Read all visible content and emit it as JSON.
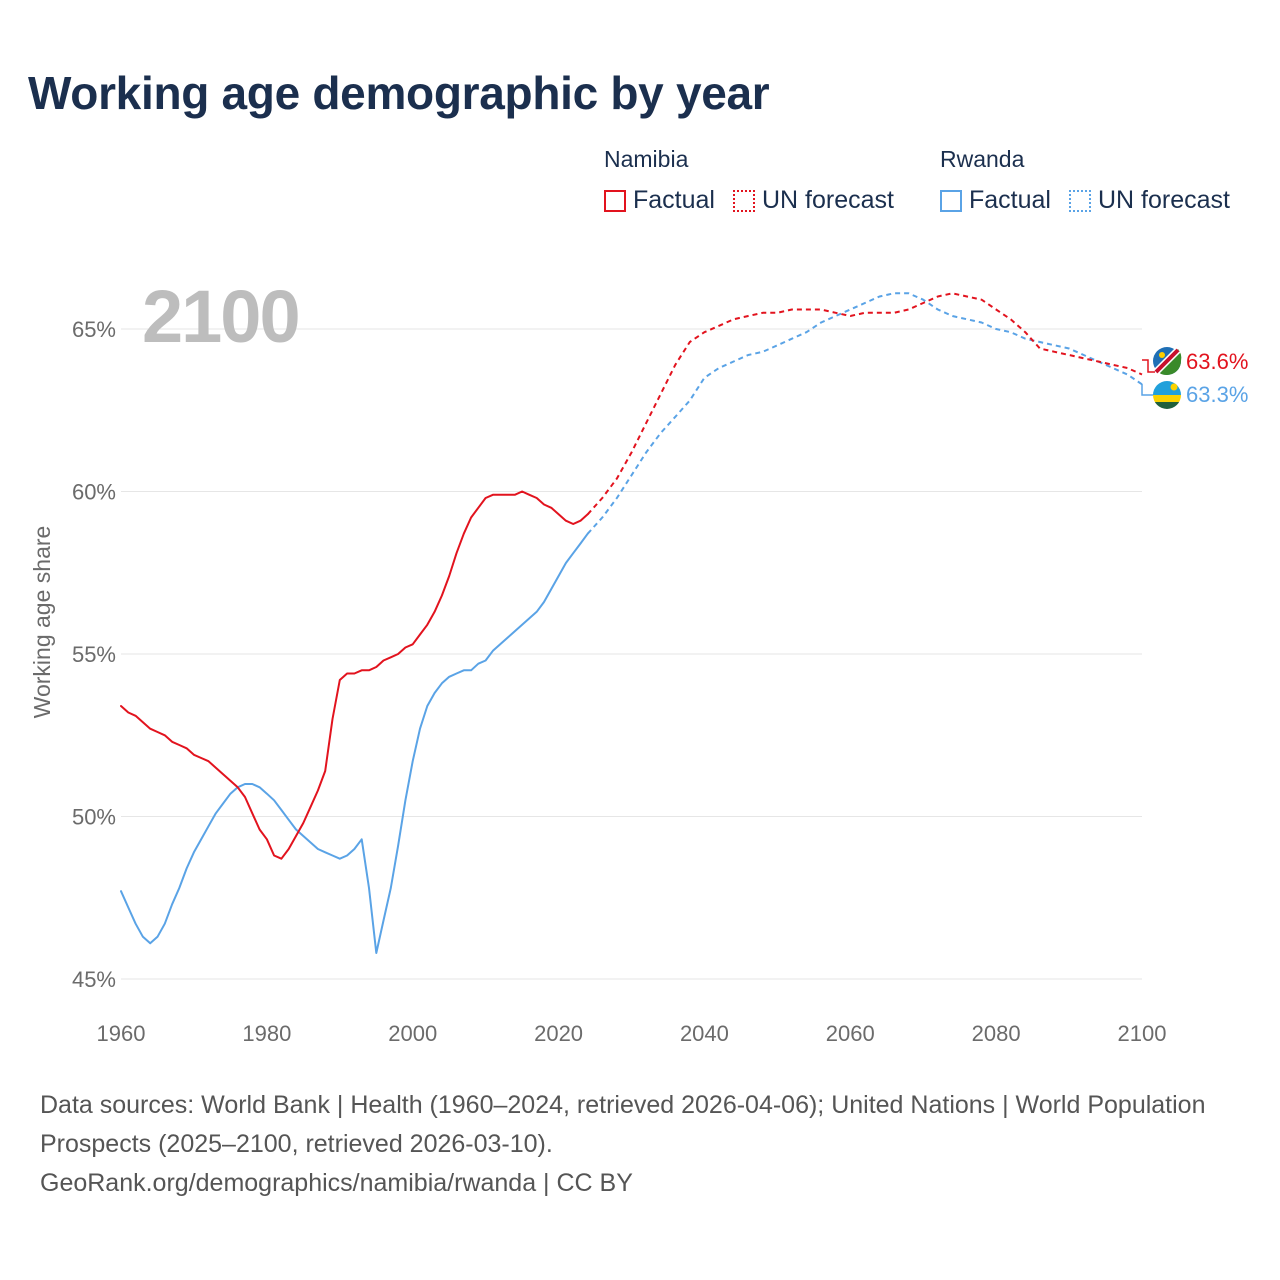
{
  "title": "Working age demographic by year",
  "legend": {
    "groups": [
      {
        "name": "Namibia",
        "factual": "Factual",
        "forecast": "UN forecast",
        "color": "#e2131e"
      },
      {
        "name": "Rwanda",
        "factual": "Factual",
        "forecast": "UN forecast",
        "color": "#5aa3e6"
      }
    ]
  },
  "year_watermark": "2100",
  "end_labels": {
    "namibia": "63.6%",
    "rwanda": "63.3%"
  },
  "footer": {
    "sources": "Data sources: World Bank | Health (1960–2024, retrieved 2026-04-06); United Nations | World Population Prospects (2025–2100, retrieved 2026-03-10).",
    "credit": "GeoRank.org/demographics/namibia/rwanda | CC BY"
  },
  "chart_data": {
    "type": "line",
    "title": "Working age demographic by year",
    "xlabel": "",
    "ylabel": "Working age share",
    "xlim": [
      1960,
      2100
    ],
    "ylim": [
      45,
      67
    ],
    "x_ticks": [
      1960,
      1980,
      2000,
      2020,
      2040,
      2060,
      2080,
      2100
    ],
    "x_tick_labels": [
      "1960",
      "1980",
      "2000",
      "2020",
      "2040",
      "2060",
      "2080",
      "2100"
    ],
    "y_ticks": [
      45,
      50,
      55,
      60,
      65
    ],
    "y_tick_labels": [
      "45%",
      "50%",
      "55%",
      "60%",
      "65%"
    ],
    "series": [
      {
        "name": "Namibia",
        "segment": "Factual",
        "color": "#e2131e",
        "dash": "solid",
        "x": [
          1960,
          1961,
          1962,
          1963,
          1964,
          1965,
          1966,
          1967,
          1968,
          1969,
          1970,
          1971,
          1972,
          1973,
          1974,
          1975,
          1976,
          1977,
          1978,
          1979,
          1980,
          1981,
          1982,
          1983,
          1984,
          1985,
          1986,
          1987,
          1988,
          1989,
          1990,
          1991,
          1992,
          1993,
          1994,
          1995,
          1996,
          1997,
          1998,
          1999,
          2000,
          2001,
          2002,
          2003,
          2004,
          2005,
          2006,
          2007,
          2008,
          2009,
          2010,
          2011,
          2012,
          2013,
          2014,
          2015,
          2016,
          2017,
          2018,
          2019,
          2020,
          2021,
          2022,
          2023,
          2024
        ],
        "y": [
          53.4,
          53.2,
          53.1,
          52.9,
          52.7,
          52.6,
          52.5,
          52.3,
          52.2,
          52.1,
          51.9,
          51.8,
          51.7,
          51.5,
          51.3,
          51.1,
          50.9,
          50.6,
          50.1,
          49.6,
          49.3,
          48.8,
          48.7,
          49.0,
          49.4,
          49.8,
          50.3,
          50.8,
          51.4,
          53.0,
          54.2,
          54.4,
          54.4,
          54.5,
          54.5,
          54.6,
          54.8,
          54.9,
          55.0,
          55.2,
          55.3,
          55.6,
          55.9,
          56.3,
          56.8,
          57.4,
          58.1,
          58.7,
          59.2,
          59.5,
          59.8,
          59.9,
          59.9,
          59.9,
          59.9,
          60.0,
          59.9,
          59.8,
          59.6,
          59.5,
          59.3,
          59.1,
          59.0,
          59.1,
          59.3
        ]
      },
      {
        "name": "Namibia",
        "segment": "UN forecast",
        "color": "#e2131e",
        "dash": "dashed",
        "x": [
          2024,
          2026,
          2028,
          2030,
          2032,
          2034,
          2036,
          2038,
          2040,
          2042,
          2044,
          2046,
          2048,
          2050,
          2052,
          2054,
          2056,
          2058,
          2060,
          2062,
          2064,
          2066,
          2068,
          2070,
          2072,
          2074,
          2076,
          2078,
          2080,
          2082,
          2084,
          2086,
          2088,
          2090,
          2092,
          2094,
          2096,
          2098,
          2100
        ],
        "y": [
          59.3,
          59.8,
          60.4,
          61.2,
          62.1,
          63.0,
          63.9,
          64.6,
          64.9,
          65.1,
          65.3,
          65.4,
          65.5,
          65.5,
          65.6,
          65.6,
          65.6,
          65.5,
          65.4,
          65.5,
          65.5,
          65.5,
          65.6,
          65.8,
          66.0,
          66.1,
          66.0,
          65.9,
          65.6,
          65.3,
          64.9,
          64.4,
          64.3,
          64.2,
          64.1,
          64.0,
          63.9,
          63.8,
          63.6
        ]
      },
      {
        "name": "Rwanda",
        "segment": "Factual",
        "color": "#5aa3e6",
        "dash": "solid",
        "x": [
          1960,
          1961,
          1962,
          1963,
          1964,
          1965,
          1966,
          1967,
          1968,
          1969,
          1970,
          1971,
          1972,
          1973,
          1974,
          1975,
          1976,
          1977,
          1978,
          1979,
          1980,
          1981,
          1982,
          1983,
          1984,
          1985,
          1986,
          1987,
          1988,
          1989,
          1990,
          1991,
          1992,
          1993,
          1994,
          1995,
          1996,
          1997,
          1998,
          1999,
          2000,
          2001,
          2002,
          2003,
          2004,
          2005,
          2006,
          2007,
          2008,
          2009,
          2010,
          2011,
          2012,
          2013,
          2014,
          2015,
          2016,
          2017,
          2018,
          2019,
          2020,
          2021,
          2022,
          2023,
          2024
        ],
        "y": [
          47.7,
          47.2,
          46.7,
          46.3,
          46.1,
          46.3,
          46.7,
          47.3,
          47.8,
          48.4,
          48.9,
          49.3,
          49.7,
          50.1,
          50.4,
          50.7,
          50.9,
          51.0,
          51.0,
          50.9,
          50.7,
          50.5,
          50.2,
          49.9,
          49.6,
          49.4,
          49.2,
          49.0,
          48.9,
          48.8,
          48.7,
          48.8,
          49.0,
          49.3,
          47.8,
          45.8,
          46.8,
          47.8,
          49.1,
          50.5,
          51.7,
          52.7,
          53.4,
          53.8,
          54.1,
          54.3,
          54.4,
          54.5,
          54.5,
          54.7,
          54.8,
          55.1,
          55.3,
          55.5,
          55.7,
          55.9,
          56.1,
          56.3,
          56.6,
          57.0,
          57.4,
          57.8,
          58.1,
          58.4,
          58.7
        ]
      },
      {
        "name": "Rwanda",
        "segment": "UN forecast",
        "color": "#5aa3e6",
        "dash": "dashed",
        "x": [
          2024,
          2026,
          2028,
          2030,
          2032,
          2034,
          2036,
          2038,
          2040,
          2042,
          2044,
          2046,
          2048,
          2050,
          2052,
          2054,
          2056,
          2058,
          2060,
          2062,
          2064,
          2066,
          2068,
          2070,
          2072,
          2074,
          2076,
          2078,
          2080,
          2082,
          2084,
          2086,
          2088,
          2090,
          2092,
          2094,
          2096,
          2098,
          2100
        ],
        "y": [
          58.7,
          59.2,
          59.8,
          60.5,
          61.2,
          61.8,
          62.3,
          62.8,
          63.5,
          63.8,
          64.0,
          64.2,
          64.3,
          64.5,
          64.7,
          64.9,
          65.2,
          65.4,
          65.6,
          65.8,
          66.0,
          66.1,
          66.1,
          65.9,
          65.6,
          65.4,
          65.3,
          65.2,
          65.0,
          64.9,
          64.7,
          64.6,
          64.5,
          64.4,
          64.2,
          64.0,
          63.8,
          63.6,
          63.3
        ]
      }
    ]
  }
}
